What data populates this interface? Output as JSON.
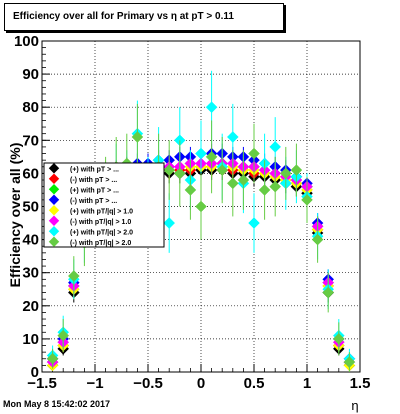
{
  "title": "Efficiency over all for Primary vs   η at pT > 0.11",
  "timestamp": "Mon May  8 15:42:02 2017",
  "chart_data": {
    "type": "scatter",
    "title": "Efficiency over all for Primary vs   η at pT > 0.11",
    "xlabel": "η",
    "ylabel": "Efficiency over all (%)",
    "xlim": [
      -1.5,
      1.5
    ],
    "ylim": [
      0,
      100
    ],
    "x_ticks": [
      -1.5,
      -1,
      -0.5,
      0,
      0.5,
      1,
      1.5
    ],
    "x_tick_labels": [
      "−1.5",
      "−1",
      "−0.5",
      "0",
      "0.5",
      "1",
      "1.5"
    ],
    "y_ticks": [
      0,
      10,
      20,
      30,
      40,
      50,
      60,
      70,
      80,
      90,
      100
    ],
    "y_tick_labels": [
      "0",
      "10",
      "20",
      "30",
      "40",
      "50",
      "60",
      "70",
      "80",
      "90",
      "100"
    ],
    "grid": true,
    "legend_position": "left-middle",
    "series": [
      {
        "name": "(+) with pT > ...",
        "color": "#000000",
        "marker": "diamond",
        "x": [
          -1.4,
          -1.3,
          -1.2,
          -1.1,
          -1.0,
          -0.9,
          -0.8,
          -0.7,
          -0.6,
          -0.5,
          -0.4,
          -0.3,
          -0.2,
          -0.1,
          0.0,
          0.1,
          0.2,
          0.3,
          0.4,
          0.5,
          0.6,
          0.7,
          0.8,
          0.9,
          1.0,
          1.1,
          1.2,
          1.3,
          1.4
        ],
        "y": [
          2,
          7,
          24,
          41,
          51,
          56,
          58,
          58,
          59,
          59,
          59,
          60,
          60,
          60,
          61,
          61,
          61,
          60,
          60,
          59,
          59,
          58,
          57,
          56,
          54,
          42,
          24,
          7,
          2
        ],
        "err": [
          1,
          2,
          3,
          3,
          3,
          3,
          3,
          3,
          3,
          3,
          3,
          3,
          3,
          3,
          3,
          3,
          3,
          3,
          3,
          3,
          3,
          3,
          3,
          3,
          3,
          3,
          3,
          2,
          1
        ]
      },
      {
        "name": "(-) with pT > ...",
        "color": "#ff0000",
        "marker": "diamond",
        "x": [
          -1.4,
          -1.3,
          -1.2,
          -1.1,
          -1.0,
          -0.9,
          -0.8,
          -0.7,
          -0.6,
          -0.5,
          -0.4,
          -0.3,
          -0.2,
          -0.1,
          0.0,
          0.1,
          0.2,
          0.3,
          0.4,
          0.5,
          0.6,
          0.7,
          0.8,
          0.9,
          1.0,
          1.1,
          1.2,
          1.3,
          1.4
        ],
        "y": [
          3,
          8,
          25,
          42,
          52,
          57,
          59,
          59,
          60,
          60,
          60,
          61,
          61,
          61,
          62,
          62,
          61,
          61,
          61,
          60,
          60,
          59,
          58,
          57,
          55,
          43,
          26,
          8,
          3
        ],
        "err": [
          1,
          2,
          3,
          3,
          3,
          3,
          3,
          3,
          3,
          3,
          3,
          3,
          3,
          3,
          3,
          3,
          3,
          3,
          3,
          3,
          3,
          3,
          3,
          3,
          3,
          3,
          3,
          2,
          1
        ]
      },
      {
        "name": "(+) with pT > ...",
        "color": "#00ee00",
        "marker": "diamond",
        "x": [
          -1.4,
          -1.3,
          -1.2,
          -1.1,
          -1.0,
          -0.9,
          -0.8,
          -0.7,
          -0.6,
          -0.5,
          -0.4,
          -0.3,
          -0.2,
          -0.1,
          0.0,
          0.1,
          0.2,
          0.3,
          0.4,
          0.5,
          0.6,
          0.7,
          0.8,
          0.9,
          1.0,
          1.1,
          1.2,
          1.3,
          1.4
        ],
        "y": [
          3,
          9,
          26,
          43,
          53,
          58,
          60,
          61,
          61,
          61,
          62,
          62,
          62,
          63,
          63,
          63,
          63,
          62,
          62,
          62,
          61,
          60,
          59,
          58,
          56,
          44,
          27,
          9,
          3
        ],
        "err": [
          1,
          2,
          3,
          3,
          3,
          3,
          3,
          3,
          3,
          3,
          3,
          3,
          3,
          3,
          3,
          3,
          3,
          3,
          3,
          3,
          3,
          3,
          3,
          3,
          3,
          3,
          3,
          2,
          1
        ]
      },
      {
        "name": "(-) with pT > ...",
        "color": "#0000ff",
        "marker": "diamond",
        "x": [
          -1.4,
          -1.3,
          -1.2,
          -1.1,
          -1.0,
          -0.9,
          -0.8,
          -0.7,
          -0.6,
          -0.5,
          -0.4,
          -0.3,
          -0.2,
          -0.1,
          0.0,
          0.1,
          0.2,
          0.3,
          0.4,
          0.5,
          0.6,
          0.7,
          0.8,
          0.9,
          1.0,
          1.1,
          1.2,
          1.3,
          1.4
        ],
        "y": [
          4,
          10,
          27,
          44,
          54,
          59,
          61,
          62,
          63,
          63,
          64,
          64,
          65,
          65,
          66,
          66,
          66,
          65,
          65,
          64,
          63,
          62,
          61,
          59,
          57,
          45,
          28,
          10,
          4
        ],
        "err": [
          1,
          2,
          3,
          3,
          3,
          3,
          3,
          3,
          3,
          3,
          3,
          3,
          3,
          3,
          3,
          3,
          3,
          3,
          3,
          3,
          3,
          3,
          3,
          3,
          3,
          3,
          3,
          2,
          1
        ]
      },
      {
        "name": "(+) with pT/|q| > 1.0",
        "color": "#ffff00",
        "marker": "diamond",
        "x": [
          -1.4,
          -1.3,
          -1.2,
          -1.1,
          -1.0,
          -0.9,
          -0.8,
          -0.7,
          -0.6,
          -0.5,
          -0.4,
          -0.3,
          -0.2,
          -0.1,
          0.0,
          0.1,
          0.2,
          0.3,
          0.4,
          0.5,
          0.6,
          0.7,
          0.8,
          0.9,
          1.0,
          1.1,
          1.2,
          1.3,
          1.4
        ],
        "y": [
          2,
          8,
          25,
          42,
          52,
          57,
          59,
          60,
          60,
          61,
          61,
          61,
          62,
          62,
          62,
          62,
          62,
          62,
          61,
          61,
          60,
          59,
          58,
          57,
          55,
          43,
          26,
          8,
          2
        ],
        "err": [
          1,
          2,
          3,
          3,
          3,
          3,
          3,
          3,
          3,
          3,
          3,
          3,
          3,
          3,
          3,
          3,
          3,
          3,
          3,
          3,
          3,
          3,
          3,
          3,
          3,
          3,
          3,
          2,
          1
        ]
      },
      {
        "name": "(-) with pT/|q| > 1.0",
        "color": "#ff00ff",
        "marker": "diamond",
        "x": [
          -1.4,
          -1.3,
          -1.2,
          -1.1,
          -1.0,
          -0.9,
          -0.8,
          -0.7,
          -0.6,
          -0.5,
          -0.4,
          -0.3,
          -0.2,
          -0.1,
          0.0,
          0.1,
          0.2,
          0.3,
          0.4,
          0.5,
          0.6,
          0.7,
          0.8,
          0.9,
          1.0,
          1.1,
          1.2,
          1.3,
          1.4
        ],
        "y": [
          3,
          9,
          26,
          43,
          53,
          58,
          60,
          60,
          61,
          61,
          62,
          62,
          62,
          63,
          63,
          63,
          63,
          63,
          62,
          62,
          61,
          60,
          59,
          58,
          56,
          44,
          27,
          9,
          3
        ],
        "err": [
          1,
          2,
          3,
          3,
          3,
          3,
          3,
          3,
          3,
          3,
          3,
          3,
          3,
          3,
          3,
          3,
          3,
          3,
          3,
          3,
          3,
          3,
          3,
          3,
          3,
          3,
          3,
          2,
          1
        ]
      },
      {
        "name": "(+) with pT/|q| > 2.0",
        "color": "#00ffff",
        "marker": "diamond",
        "x": [
          -1.4,
          -1.3,
          -1.2,
          -1.1,
          -1.0,
          -0.9,
          -0.8,
          -0.7,
          -0.6,
          -0.5,
          -0.4,
          -0.3,
          -0.2,
          -0.1,
          0.0,
          0.1,
          0.2,
          0.3,
          0.4,
          0.5,
          0.6,
          0.7,
          0.8,
          0.9,
          1.0,
          1.1,
          1.2,
          1.3,
          1.4
        ],
        "y": [
          5,
          12,
          28,
          40,
          48,
          55,
          60,
          58,
          72,
          56,
          64,
          45,
          70,
          58,
          66,
          80,
          62,
          71,
          57,
          45,
          63,
          68,
          57,
          59,
          53,
          41,
          25,
          11,
          4
        ],
        "err": [
          3,
          5,
          6,
          7,
          7,
          8,
          9,
          9,
          10,
          9,
          10,
          9,
          10,
          9,
          10,
          11,
          10,
          10,
          9,
          9,
          9,
          9,
          8,
          8,
          7,
          7,
          6,
          5,
          3
        ]
      },
      {
        "name": "(-) with pT/|q| > 2.0",
        "color": "#66cc44",
        "marker": "diamond",
        "x": [
          -1.4,
          -1.3,
          -1.2,
          -1.1,
          -1.0,
          -0.9,
          -0.8,
          -0.7,
          -0.6,
          -0.5,
          -0.4,
          -0.3,
          -0.2,
          -0.1,
          0.0,
          0.1,
          0.2,
          0.3,
          0.4,
          0.5,
          0.6,
          0.7,
          0.8,
          0.9,
          1.0,
          1.1,
          1.2,
          1.3,
          1.4
        ],
        "y": [
          4,
          11,
          29,
          39,
          50,
          57,
          62,
          63,
          71,
          54,
          62,
          61,
          60,
          55,
          50,
          65,
          61,
          57,
          58,
          66,
          55,
          56,
          60,
          61,
          52,
          40,
          24,
          10,
          3
        ],
        "err": [
          3,
          5,
          6,
          7,
          7,
          8,
          9,
          9,
          10,
          9,
          10,
          9,
          10,
          9,
          10,
          11,
          10,
          10,
          9,
          9,
          9,
          9,
          8,
          8,
          7,
          7,
          6,
          5,
          3
        ]
      }
    ]
  }
}
